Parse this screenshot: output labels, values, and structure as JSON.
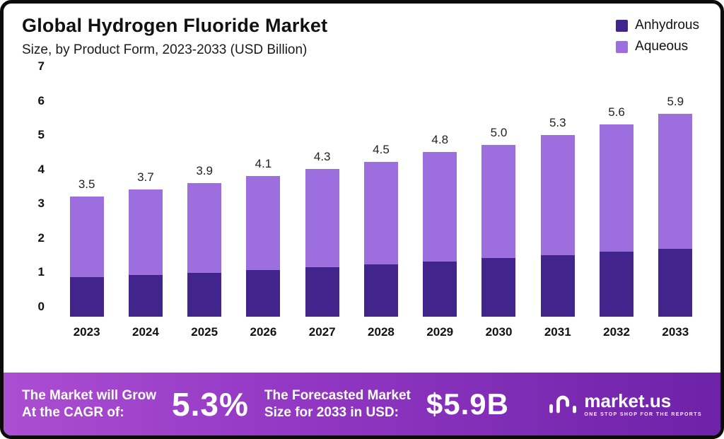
{
  "header": {
    "title": "Global Hydrogen Fluoride Market",
    "subtitle": "Size, by Product Form, 2023-2033 (USD Billion)"
  },
  "legend": [
    {
      "label": "Anhydrous",
      "color": "#41258c"
    },
    {
      "label": "Aqueous",
      "color": "#9d6edd"
    }
  ],
  "chart_data": {
    "type": "bar",
    "stacked": true,
    "title": "Global Hydrogen Fluoride Market",
    "subtitle": "Size, by Product Form, 2023-2033 (USD Billion)",
    "categories": [
      "2023",
      "2024",
      "2025",
      "2026",
      "2027",
      "2028",
      "2029",
      "2030",
      "2031",
      "2032",
      "2033"
    ],
    "series": [
      {
        "name": "Anhydrous",
        "color": "#41258c",
        "values": [
          1.15,
          1.22,
          1.28,
          1.36,
          1.44,
          1.52,
          1.61,
          1.7,
          1.8,
          1.9,
          1.97
        ]
      },
      {
        "name": "Aqueous",
        "color": "#9d6edd",
        "values": [
          2.35,
          2.48,
          2.62,
          2.74,
          2.86,
          2.98,
          3.19,
          3.3,
          3.5,
          3.7,
          3.93
        ]
      }
    ],
    "totals": [
      3.5,
      3.7,
      3.9,
      4.1,
      4.3,
      4.5,
      4.8,
      5.0,
      5.3,
      5.6,
      5.9
    ],
    "xlabel": "",
    "ylabel": "",
    "ylim": [
      0,
      7
    ],
    "yticks": [
      0,
      1,
      2,
      3,
      4,
      5,
      6,
      7
    ],
    "grid": false,
    "legend_position": "top-right"
  },
  "footer": {
    "cagr_label_line1": "The Market will Grow",
    "cagr_label_line2": "At the CAGR of:",
    "cagr_value": "5.3%",
    "forecast_label_line1": "The Forecasted Market",
    "forecast_label_line2": "Size for 2033 in USD:",
    "forecast_value": "$5.9B",
    "brand_name": "market.us",
    "brand_tagline": "ONE STOP SHOP FOR THE REPORTS",
    "gradient_start": "#ab4ed2",
    "gradient_end": "#6d22a8"
  }
}
